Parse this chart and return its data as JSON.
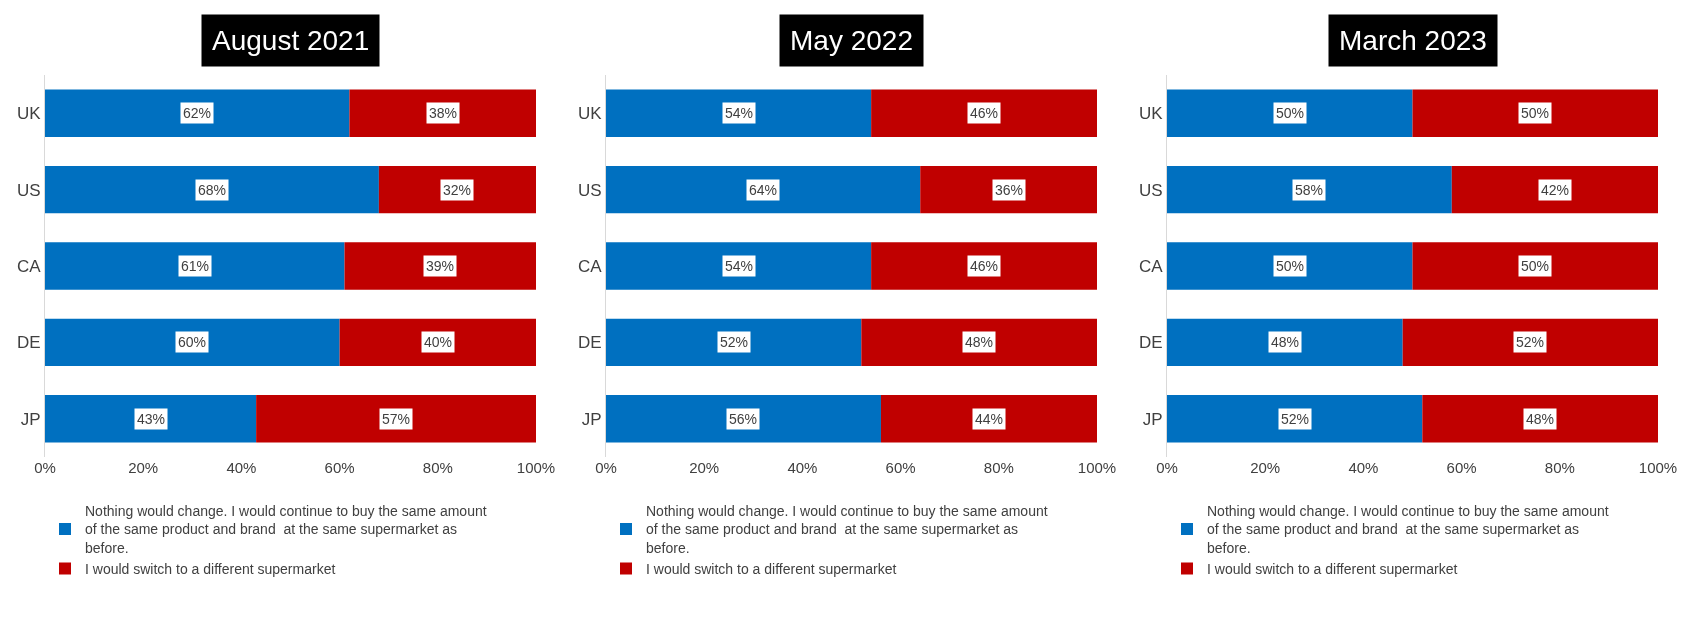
{
  "chart_data": [
    {
      "type": "bar",
      "orientation": "horizontal",
      "stacked": true,
      "title": "August 2021",
      "categories": [
        "UK",
        "US",
        "CA",
        "DE",
        "JP"
      ],
      "xlim": [
        0,
        100
      ],
      "xticks": [
        {
          "value": 0,
          "label": "0%"
        },
        {
          "value": 20,
          "label": "20%"
        },
        {
          "value": 40,
          "label": "40%"
        },
        {
          "value": 60,
          "label": "60%"
        },
        {
          "value": 80,
          "label": "80%"
        },
        {
          "value": 100,
          "label": "100%"
        }
      ],
      "grid": false,
      "legend": "bottom",
      "series": [
        {
          "name": "Nothing would change. I would continue to buy the same amount of the same product and brand  at the same supermarket as before.",
          "color": "#0070c0",
          "values": [
            62,
            68,
            61,
            60,
            43
          ],
          "value_labels": [
            "62%",
            "68%",
            "61%",
            "60%",
            "43%"
          ]
        },
        {
          "name": "I would switch to a different supermarket",
          "color": "#c00000",
          "values": [
            38,
            32,
            39,
            40,
            57
          ],
          "value_labels": [
            "38%",
            "32%",
            "39%",
            "40%",
            "57%"
          ]
        }
      ]
    },
    {
      "type": "bar",
      "orientation": "horizontal",
      "stacked": true,
      "title": "May 2022",
      "categories": [
        "UK",
        "US",
        "CA",
        "DE",
        "JP"
      ],
      "xlim": [
        0,
        100
      ],
      "xticks": [
        {
          "value": 0,
          "label": "0%"
        },
        {
          "value": 20,
          "label": "20%"
        },
        {
          "value": 40,
          "label": "40%"
        },
        {
          "value": 60,
          "label": "60%"
        },
        {
          "value": 80,
          "label": "80%"
        },
        {
          "value": 100,
          "label": "100%"
        }
      ],
      "grid": false,
      "legend": "bottom",
      "series": [
        {
          "name": "Nothing would change. I would continue to buy the same amount of the same product and brand  at the same supermarket as before.",
          "color": "#0070c0",
          "values": [
            54,
            64,
            54,
            52,
            56
          ],
          "value_labels": [
            "54%",
            "64%",
            "54%",
            "52%",
            "56%"
          ]
        },
        {
          "name": "I would switch to a different supermarket",
          "color": "#c00000",
          "values": [
            46,
            36,
            46,
            48,
            44
          ],
          "value_labels": [
            "46%",
            "36%",
            "46%",
            "48%",
            "44%"
          ]
        }
      ]
    },
    {
      "type": "bar",
      "orientation": "horizontal",
      "stacked": true,
      "title": "March 2023",
      "categories": [
        "UK",
        "US",
        "CA",
        "DE",
        "JP"
      ],
      "xlim": [
        0,
        100
      ],
      "xticks": [
        {
          "value": 0,
          "label": "0%"
        },
        {
          "value": 20,
          "label": "20%"
        },
        {
          "value": 40,
          "label": "40%"
        },
        {
          "value": 60,
          "label": "60%"
        },
        {
          "value": 80,
          "label": "80%"
        },
        {
          "value": 100,
          "label": "100%"
        }
      ],
      "grid": false,
      "legend": "bottom",
      "series": [
        {
          "name": "Nothing would change. I would continue to buy the same amount of the same product and brand  at the same supermarket as before.",
          "color": "#0070c0",
          "values": [
            50,
            58,
            50,
            48,
            52
          ],
          "value_labels": [
            "50%",
            "58%",
            "50%",
            "48%",
            "52%"
          ]
        },
        {
          "name": "I would switch to a different supermarket",
          "color": "#c00000",
          "values": [
            50,
            42,
            50,
            52,
            48
          ],
          "value_labels": [
            "50%",
            "42%",
            "50%",
            "52%",
            "48%"
          ]
        }
      ]
    }
  ]
}
